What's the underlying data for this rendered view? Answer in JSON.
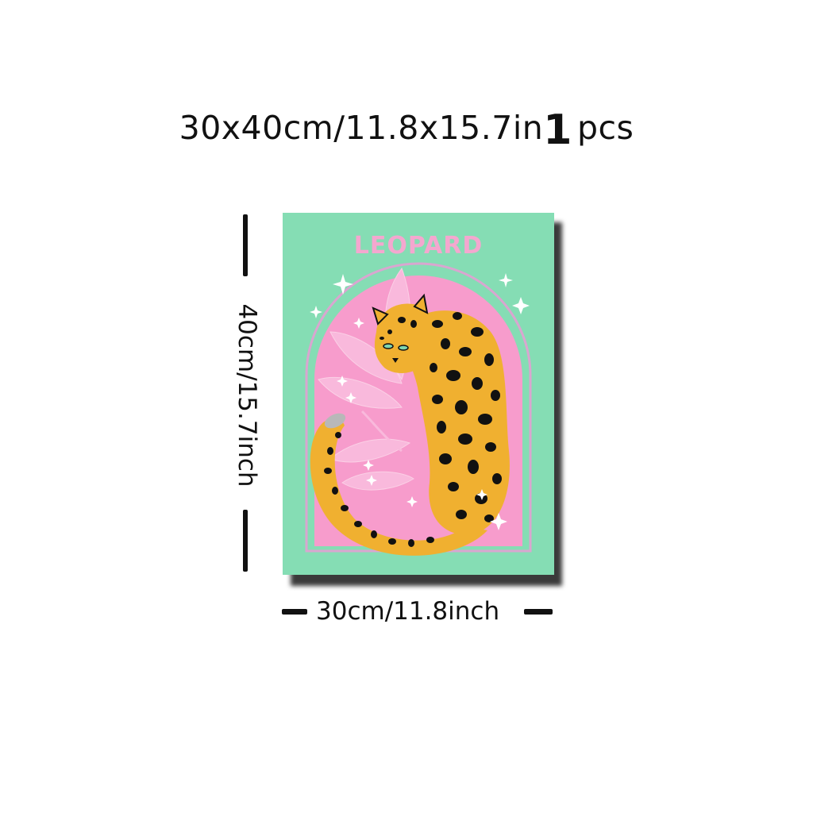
{
  "header": {
    "size_text": "30x40cm/11.8x15.7in",
    "quantity": "1",
    "unit": "pcs"
  },
  "poster": {
    "title": "LEOPARD",
    "colors": {
      "background": "#85ddb4",
      "arch": "#f79ccc",
      "title": "#f4a7cf",
      "leopard": "#f0b030",
      "spots": "#111111"
    }
  },
  "dimensions": {
    "height_label": "40cm/15.7inch",
    "width_label": "30cm/11.8inch"
  }
}
